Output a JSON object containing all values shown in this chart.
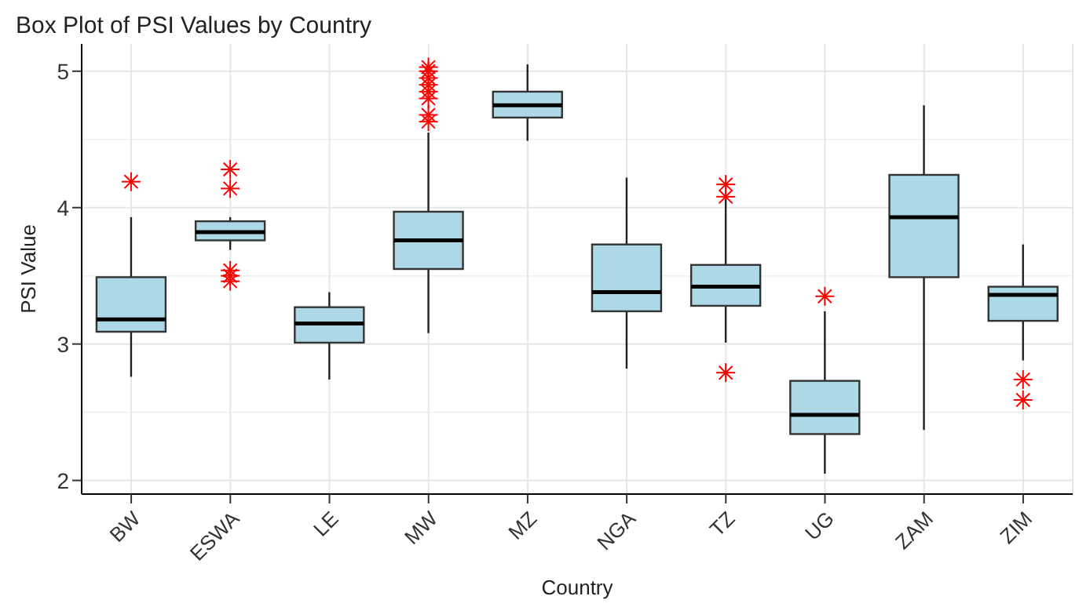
{
  "chart_data": {
    "type": "box",
    "title": "Box Plot of PSI Values by Country",
    "xlabel": "Country",
    "ylabel": "PSI Value",
    "categories": [
      "BW",
      "ESWA",
      "LE",
      "MW",
      "MZ",
      "NGA",
      "TZ",
      "UG",
      "ZAM",
      "ZIM"
    ],
    "series": [
      {
        "color": "#add8e6",
        "boxes": [
          {
            "low": 2.76,
            "q1": 3.09,
            "median": 3.18,
            "q3": 3.49,
            "high": 3.93,
            "outliers": [
              4.19
            ]
          },
          {
            "low": 3.69,
            "q1": 3.76,
            "median": 3.82,
            "q3": 3.9,
            "high": 3.93,
            "outliers": [
              4.28,
              4.14,
              3.54,
              3.5,
              3.46
            ]
          },
          {
            "low": 2.74,
            "q1": 3.01,
            "median": 3.15,
            "q3": 3.27,
            "high": 3.38
          },
          {
            "low": 3.08,
            "q1": 3.55,
            "median": 3.76,
            "q3": 3.97,
            "high": 4.55,
            "outliers": [
              4.63,
              4.68,
              4.8,
              4.85,
              4.9,
              4.95,
              5.0,
              5.03
            ]
          },
          {
            "low": 4.49,
            "q1": 4.66,
            "median": 4.75,
            "q3": 4.85,
            "high": 5.05
          },
          {
            "low": 2.82,
            "q1": 3.24,
            "median": 3.38,
            "q3": 3.73,
            "high": 4.22
          },
          {
            "low": 3.01,
            "q1": 3.28,
            "median": 3.42,
            "q3": 3.58,
            "high": 4.06,
            "outliers": [
              4.17,
              4.08,
              2.79
            ]
          },
          {
            "low": 2.05,
            "q1": 2.34,
            "median": 2.48,
            "q3": 2.73,
            "high": 3.24,
            "outliers": [
              3.35
            ]
          },
          {
            "low": 2.37,
            "q1": 3.49,
            "median": 3.93,
            "q3": 4.24,
            "high": 4.75
          },
          {
            "low": 2.88,
            "q1": 3.17,
            "median": 3.36,
            "q3": 3.42,
            "high": 3.73,
            "outliers": [
              2.74,
              2.59
            ]
          }
        ]
      }
    ],
    "ylim": [
      1.9,
      5.2
    ],
    "yticks": [
      2,
      3,
      4,
      5
    ],
    "grid": true,
    "marker": "star"
  }
}
